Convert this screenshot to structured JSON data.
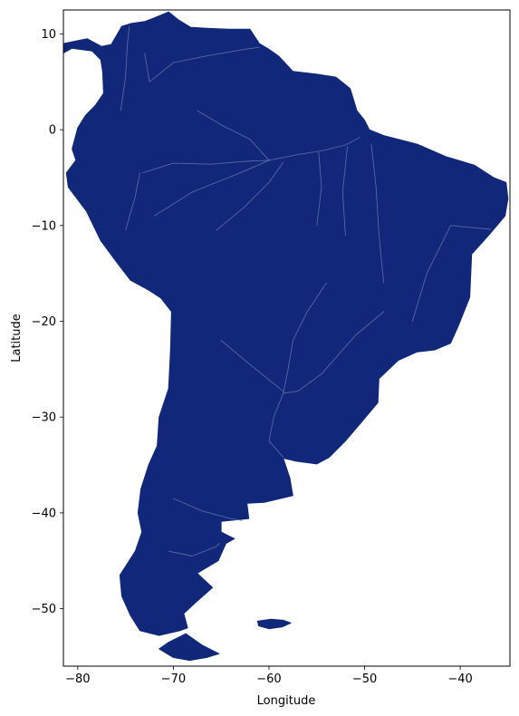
{
  "chart_data": {
    "type": "map",
    "region": "South America",
    "xlabel": "Longitude",
    "ylabel": "Latitude",
    "xlim": [
      -81.5,
      -34.8
    ],
    "ylim": [
      -56.0,
      12.5
    ],
    "xticks": [
      -80,
      -70,
      -60,
      -50,
      -40
    ],
    "yticks": [
      10,
      0,
      -10,
      -20,
      -30,
      -40,
      -50
    ],
    "xtick_labels": [
      "−80",
      "−70",
      "−60",
      "−50",
      "−40"
    ],
    "ytick_labels": [
      "10",
      "0",
      "−10",
      "−20",
      "−30",
      "−40",
      "−50"
    ],
    "colors": {
      "land": "#10277a",
      "rivers": "#6f7fae",
      "frame": "#000000",
      "background": "#ffffff"
    },
    "grid": false,
    "mainland_outline": [
      [
        -72.2,
        11.6
      ],
      [
        -70.5,
        12.3
      ],
      [
        -69.5,
        11.5
      ],
      [
        -68.2,
        10.7
      ],
      [
        -66.5,
        10.6
      ],
      [
        -64.2,
        10.5
      ],
      [
        -62.0,
        10.5
      ],
      [
        -61.0,
        9.0
      ],
      [
        -60.0,
        8.4
      ],
      [
        -59.0,
        7.7
      ],
      [
        -57.5,
        6.1
      ],
      [
        -55.0,
        5.8
      ],
      [
        -53.0,
        5.5
      ],
      [
        -51.5,
        4.3
      ],
      [
        -50.8,
        2.0
      ],
      [
        -50.0,
        1.0
      ],
      [
        -49.5,
        0.0
      ],
      [
        -48.0,
        -0.6
      ],
      [
        -44.5,
        -1.5
      ],
      [
        -41.5,
        -2.8
      ],
      [
        -38.5,
        -3.7
      ],
      [
        -36.5,
        -5.0
      ],
      [
        -35.2,
        -5.5
      ],
      [
        -35.0,
        -7.2
      ],
      [
        -35.3,
        -9.0
      ],
      [
        -37.0,
        -11.0
      ],
      [
        -38.8,
        -13.0
      ],
      [
        -39.0,
        -17.5
      ],
      [
        -40.2,
        -20.5
      ],
      [
        -41.0,
        -22.3
      ],
      [
        -42.7,
        -23.0
      ],
      [
        -44.5,
        -23.2
      ],
      [
        -46.5,
        -24.1
      ],
      [
        -48.5,
        -26.0
      ],
      [
        -48.6,
        -28.5
      ],
      [
        -50.3,
        -30.5
      ],
      [
        -52.0,
        -32.5
      ],
      [
        -53.7,
        -34.2
      ],
      [
        -55.0,
        -34.9
      ],
      [
        -57.2,
        -34.6
      ],
      [
        -58.5,
        -34.3
      ],
      [
        -57.8,
        -36.4
      ],
      [
        -57.5,
        -38.2
      ],
      [
        -60.5,
        -38.9
      ],
      [
        -62.3,
        -39.0
      ],
      [
        -62.1,
        -40.6
      ],
      [
        -65.0,
        -40.9
      ],
      [
        -65.0,
        -42.0
      ],
      [
        -63.6,
        -42.7
      ],
      [
        -64.5,
        -43.2
      ],
      [
        -65.3,
        -45.0
      ],
      [
        -67.5,
        -46.3
      ],
      [
        -65.9,
        -47.8
      ],
      [
        -67.6,
        -49.3
      ],
      [
        -68.9,
        -50.5
      ],
      [
        -68.5,
        -52.0
      ],
      [
        -69.3,
        -52.3
      ],
      [
        -71.5,
        -52.8
      ],
      [
        -73.5,
        -52.3
      ],
      [
        -74.5,
        -50.7
      ],
      [
        -75.4,
        -48.7
      ],
      [
        -75.6,
        -46.5
      ],
      [
        -74.0,
        -44.0
      ],
      [
        -73.3,
        -42.0
      ],
      [
        -73.7,
        -40.0
      ],
      [
        -73.4,
        -37.5
      ],
      [
        -72.6,
        -35.0
      ],
      [
        -71.7,
        -33.0
      ],
      [
        -71.5,
        -30.0
      ],
      [
        -70.5,
        -27.0
      ],
      [
        -70.3,
        -23.0
      ],
      [
        -70.2,
        -19.0
      ],
      [
        -71.3,
        -17.6
      ],
      [
        -72.5,
        -16.8
      ],
      [
        -74.5,
        -15.7
      ],
      [
        -76.2,
        -13.5
      ],
      [
        -77.6,
        -11.6
      ],
      [
        -79.1,
        -8.5
      ],
      [
        -81.0,
        -6.0
      ],
      [
        -81.2,
        -4.5
      ],
      [
        -80.2,
        -3.2
      ],
      [
        -80.6,
        -2.0
      ],
      [
        -80.0,
        0.2
      ],
      [
        -79.2,
        1.5
      ],
      [
        -78.2,
        2.5
      ],
      [
        -77.3,
        3.8
      ],
      [
        -77.4,
        6.0
      ],
      [
        -77.6,
        7.3
      ],
      [
        -78.5,
        8.2
      ],
      [
        -80.6,
        8.5
      ],
      [
        -81.5,
        8.0
      ],
      [
        -81.5,
        9.0
      ],
      [
        -80.0,
        9.3
      ],
      [
        -79.0,
        9.5
      ],
      [
        -77.5,
        8.7
      ],
      [
        -76.5,
        8.9
      ],
      [
        -75.4,
        10.8
      ],
      [
        -74.4,
        11.1
      ],
      [
        -73.0,
        11.3
      ]
    ],
    "fuego_outline": [
      [
        -68.7,
        -52.6
      ],
      [
        -67.0,
        -53.8
      ],
      [
        -65.2,
        -54.7
      ],
      [
        -66.5,
        -55.1
      ],
      [
        -68.3,
        -55.4
      ],
      [
        -70.0,
        -55.1
      ],
      [
        -71.5,
        -54.2
      ],
      [
        -70.5,
        -53.5
      ]
    ],
    "falklands_outline": [
      [
        -61.2,
        -51.3
      ],
      [
        -59.8,
        -51.1
      ],
      [
        -58.5,
        -51.2
      ],
      [
        -57.7,
        -51.5
      ],
      [
        -58.6,
        -51.9
      ],
      [
        -60.0,
        -52.1
      ],
      [
        -61.1,
        -51.8
      ]
    ],
    "rivers": [
      [
        [
          -73.2,
          -4.5
        ],
        [
          -70.0,
          -3.5
        ],
        [
          -66.0,
          -3.6
        ],
        [
          -62.5,
          -3.3
        ],
        [
          -60.0,
          -3.2
        ],
        [
          -57.0,
          -2.6
        ],
        [
          -54.5,
          -2.2
        ],
        [
          -52.0,
          -1.6
        ],
        [
          -50.5,
          -0.8
        ]
      ],
      [
        [
          -67.5,
          2.0
        ],
        [
          -65.0,
          0.5
        ],
        [
          -62.0,
          -1.0
        ],
        [
          -60.0,
          -3.2
        ]
      ],
      [
        [
          -72.0,
          -9.0
        ],
        [
          -68.0,
          -6.5
        ],
        [
          -63.0,
          -4.5
        ],
        [
          -60.0,
          -3.2
        ]
      ],
      [
        [
          -65.5,
          -10.5
        ],
        [
          -62.5,
          -8.0
        ],
        [
          -60.0,
          -5.5
        ],
        [
          -58.5,
          -3.4
        ]
      ],
      [
        [
          -55.0,
          -10.0
        ],
        [
          -54.5,
          -6.0
        ],
        [
          -54.8,
          -2.4
        ]
      ],
      [
        [
          -52.0,
          -11.0
        ],
        [
          -52.3,
          -6.5
        ],
        [
          -51.8,
          -1.8
        ]
      ],
      [
        [
          -48.0,
          -16.0
        ],
        [
          -48.5,
          -11.0
        ],
        [
          -48.8,
          -6.0
        ],
        [
          -49.3,
          -1.5
        ]
      ],
      [
        [
          -45.0,
          -20.0
        ],
        [
          -43.5,
          -15.0
        ],
        [
          -41.0,
          -10.0
        ],
        [
          -36.8,
          -10.4
        ]
      ],
      [
        [
          -54.0,
          -16.0
        ],
        [
          -56.0,
          -19.0
        ],
        [
          -57.5,
          -22.0
        ],
        [
          -58.0,
          -25.0
        ],
        [
          -58.5,
          -27.5
        ],
        [
          -59.5,
          -30.0
        ],
        [
          -60.0,
          -32.5
        ],
        [
          -58.5,
          -34.2
        ]
      ],
      [
        [
          -48.0,
          -19.0
        ],
        [
          -51.0,
          -21.5
        ],
        [
          -54.5,
          -25.5
        ],
        [
          -57.0,
          -27.3
        ],
        [
          -58.5,
          -27.5
        ]
      ],
      [
        [
          -65.0,
          -22.0
        ],
        [
          -62.0,
          -24.5
        ],
        [
          -58.5,
          -27.3
        ]
      ],
      [
        [
          -73.0,
          8.0
        ],
        [
          -72.5,
          5.0
        ],
        [
          -70.0,
          7.0
        ],
        [
          -66.0,
          7.8
        ],
        [
          -62.5,
          8.4
        ],
        [
          -61.0,
          8.6
        ]
      ],
      [
        [
          -75.5,
          2.0
        ],
        [
          -75.0,
          5.5
        ],
        [
          -74.8,
          9.0
        ],
        [
          -74.6,
          10.8
        ]
      ],
      [
        [
          -70.0,
          -38.5
        ],
        [
          -67.0,
          -39.8
        ],
        [
          -64.0,
          -40.6
        ],
        [
          -62.8,
          -40.8
        ]
      ],
      [
        [
          -70.5,
          -44.0
        ],
        [
          -68.0,
          -44.5
        ],
        [
          -65.5,
          -43.5
        ],
        [
          -65.2,
          -43.2
        ]
      ],
      [
        [
          -75.0,
          -10.5
        ],
        [
          -74.0,
          -7.0
        ],
        [
          -73.5,
          -4.5
        ]
      ]
    ]
  }
}
